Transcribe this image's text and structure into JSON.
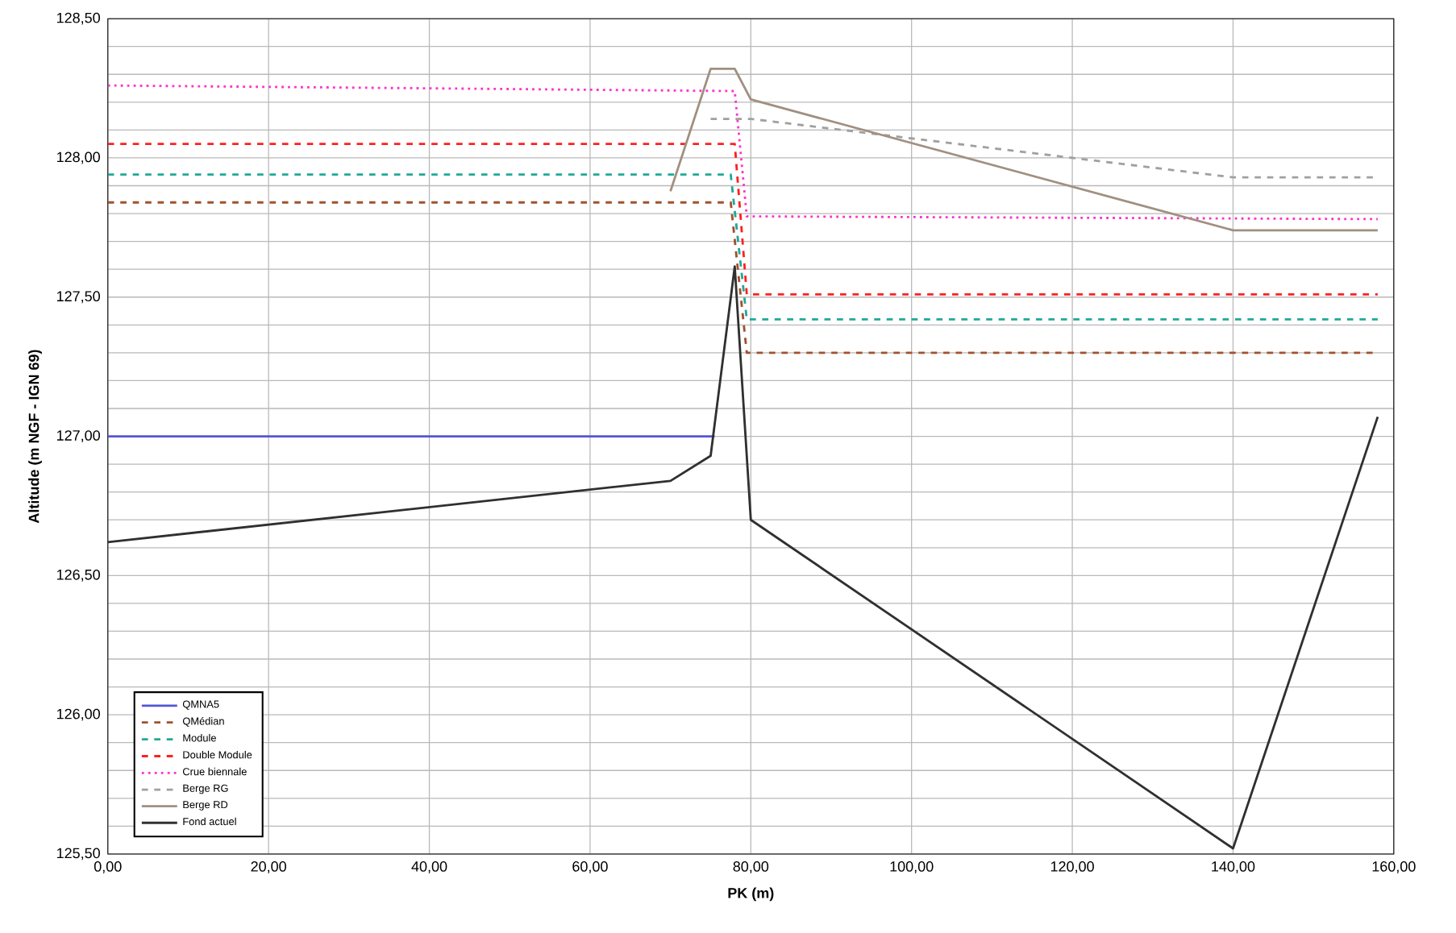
{
  "chart_data": {
    "type": "line",
    "xlabel": "PK (m)",
    "ylabel": "Altitude (m NGF - IGN 69)",
    "xlim": [
      0,
      160
    ],
    "ylim": [
      125.5,
      128.5
    ],
    "xticks": [
      {
        "value": 0,
        "label": "0,00"
      },
      {
        "value": 20,
        "label": "20,00"
      },
      {
        "value": 40,
        "label": "40,00"
      },
      {
        "value": 60,
        "label": "60,00"
      },
      {
        "value": 80,
        "label": "80,00"
      },
      {
        "value": 100,
        "label": "100,00"
      },
      {
        "value": 120,
        "label": "120,00"
      },
      {
        "value": 140,
        "label": "140,00"
      },
      {
        "value": 160,
        "label": "160,00"
      }
    ],
    "yticks": [
      {
        "value": 125.5,
        "label": "125,50"
      },
      {
        "value": 125.6,
        "label": null
      },
      {
        "value": 125.7,
        "label": null
      },
      {
        "value": 125.8,
        "label": null
      },
      {
        "value": 125.9,
        "label": null
      },
      {
        "value": 126,
        "label": "126,00"
      },
      {
        "value": 126.1,
        "label": null
      },
      {
        "value": 126.2,
        "label": null
      },
      {
        "value": 126.3,
        "label": null
      },
      {
        "value": 126.4,
        "label": null
      },
      {
        "value": 126.5,
        "label": "126,50"
      },
      {
        "value": 126.6,
        "label": null
      },
      {
        "value": 126.7,
        "label": null
      },
      {
        "value": 126.8,
        "label": null
      },
      {
        "value": 126.9,
        "label": null
      },
      {
        "value": 127,
        "label": "127,00"
      },
      {
        "value": 127.1,
        "label": null
      },
      {
        "value": 127.2,
        "label": null
      },
      {
        "value": 127.3,
        "label": null
      },
      {
        "value": 127.4,
        "label": null
      },
      {
        "value": 127.5,
        "label": "127,50"
      },
      {
        "value": 127.6,
        "label": null
      },
      {
        "value": 127.7,
        "label": null
      },
      {
        "value": 127.8,
        "label": null
      },
      {
        "value": 127.9,
        "label": null
      },
      {
        "value": 128,
        "label": "128,00"
      },
      {
        "value": 128.1,
        "label": null
      },
      {
        "value": 128.2,
        "label": null
      },
      {
        "value": 128.3,
        "label": null
      },
      {
        "value": 128.4,
        "label": null
      },
      {
        "value": 128.5,
        "label": "128,50"
      }
    ],
    "grid": true,
    "legend": "bottom left",
    "marker": "none",
    "series": [
      {
        "name": "QMNA5",
        "color": "#5555d5",
        "line_style": "solid",
        "x": [
          0,
          75.5
        ],
        "values": [
          127.0,
          127.0
        ]
      },
      {
        "name": "QMédian",
        "color": "#a0522d",
        "line_style": "dashed",
        "x": [
          0,
          77.5,
          79.5,
          158
        ],
        "values": [
          127.84,
          127.84,
          127.3,
          127.3
        ]
      },
      {
        "name": "Module",
        "color": "#20a89a",
        "line_style": "dashed",
        "x": [
          0,
          77.5,
          79.5,
          158
        ],
        "values": [
          127.94,
          127.94,
          127.42,
          127.42
        ]
      },
      {
        "name": "Double Module",
        "color": "#ff2020",
        "line_style": "dashed",
        "x": [
          0,
          78,
          79.5,
          158
        ],
        "values": [
          128.05,
          128.05,
          127.51,
          127.51
        ]
      },
      {
        "name": "Crue biennale",
        "color": "#ff33cc",
        "line_style": "dotted",
        "x": [
          0,
          78,
          79.5,
          158
        ],
        "values": [
          128.26,
          128.24,
          127.79,
          127.78
        ]
      },
      {
        "name": "Berge RG",
        "color": "#a0a0a0",
        "line_style": "dashed",
        "x": [
          75,
          80,
          140,
          158
        ],
        "values": [
          128.14,
          128.14,
          127.93,
          127.93
        ]
      },
      {
        "name": "Berge RD",
        "color": "#a09080",
        "line_style": "solid",
        "x": [
          70,
          75,
          78,
          80,
          140,
          158
        ],
        "values": [
          127.88,
          128.32,
          128.32,
          128.21,
          127.74,
          127.74
        ]
      },
      {
        "name": "Fond actuel",
        "color": "#303030",
        "line_style": "solid",
        "x": [
          0,
          70,
          75,
          78,
          80,
          140,
          158
        ],
        "values": [
          126.62,
          126.84,
          126.93,
          127.61,
          126.7,
          125.52,
          127.07
        ]
      }
    ]
  }
}
